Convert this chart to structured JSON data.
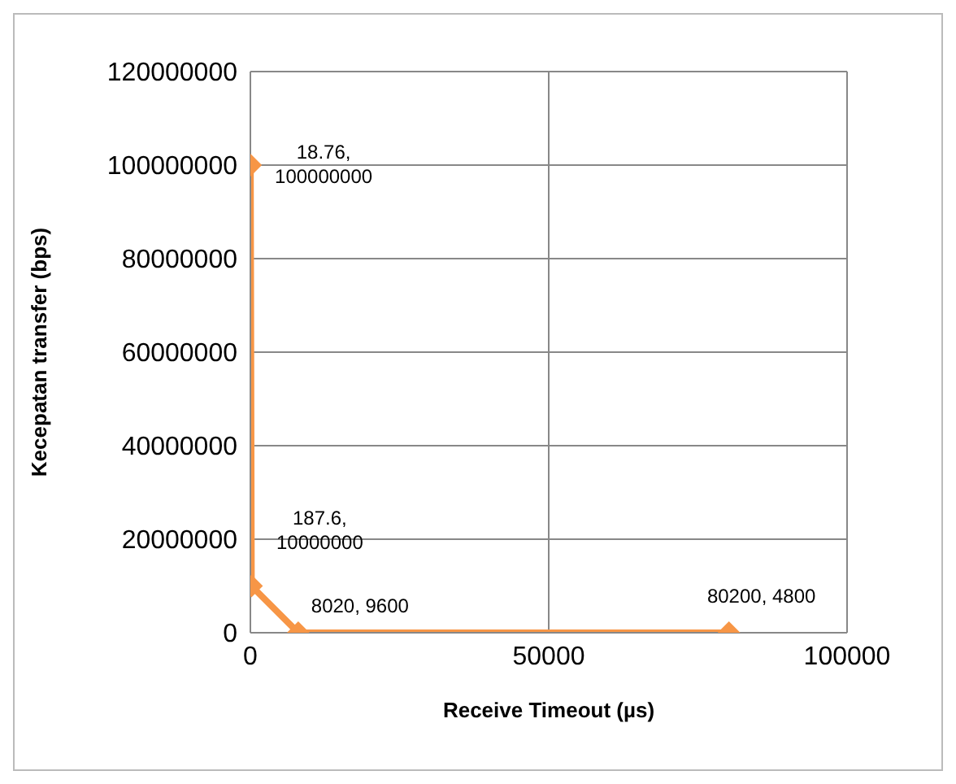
{
  "chart_data": {
    "type": "line",
    "xlabel": "Receive Timeout (µs)",
    "ylabel": "Kecepatan transfer (bps)",
    "x": [
      18.76,
      187.6,
      8020,
      80200
    ],
    "series": [
      {
        "color": "#f79646",
        "values": [
          100000000,
          10000000,
          9600,
          4800
        ],
        "value_labels": [
          "18.76, 100000000",
          "187.6, 10000000",
          "8020, 9600",
          "80200, 4800"
        ]
      }
    ],
    "xlim": [
      0,
      100000
    ],
    "xticks": [
      0,
      50000,
      100000
    ],
    "ylim": [
      0,
      120000000
    ],
    "yticks": [
      0,
      20000000,
      40000000,
      60000000,
      80000000,
      100000000,
      120000000
    ],
    "grid": true,
    "marker": "diamond",
    "line_style": "solid",
    "legend": false
  }
}
